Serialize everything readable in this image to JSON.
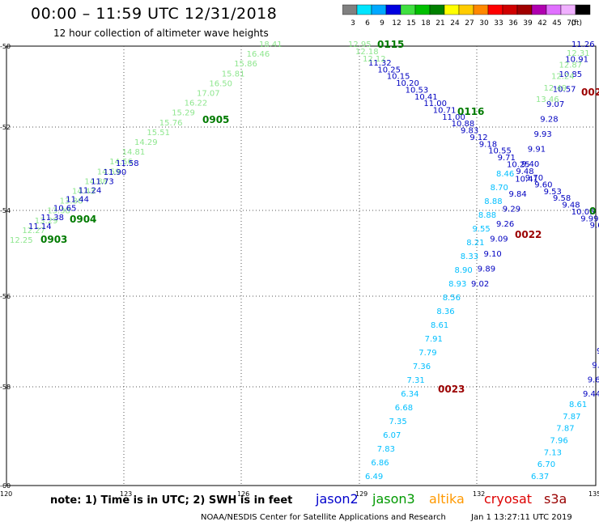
{
  "header": {
    "title": "00:00 – 11:59 UTC 12/31/2018",
    "subtitle": "12 hour collection of altimeter wave heights"
  },
  "scale": {
    "unit": "(ft)",
    "steps": [
      {
        "label": "3",
        "color": "#808080"
      },
      {
        "label": "6",
        "color": "#00e5ff"
      },
      {
        "label": "9",
        "color": "#00a8ff"
      },
      {
        "label": "12",
        "color": "#0000e0"
      },
      {
        "label": "15",
        "color": "#40e040"
      },
      {
        "label": "18",
        "color": "#00c000"
      },
      {
        "label": "21",
        "color": "#008000"
      },
      {
        "label": "24",
        "color": "#ffff00"
      },
      {
        "label": "27",
        "color": "#ffcc00"
      },
      {
        "label": "30",
        "color": "#ff8800"
      },
      {
        "label": "33",
        "color": "#ff0000"
      },
      {
        "label": "36",
        "color": "#d00000"
      },
      {
        "label": "39",
        "color": "#a00000"
      },
      {
        "label": "42",
        "color": "#b000b0"
      },
      {
        "label": "45",
        "color": "#e070ff"
      },
      {
        "label": "70",
        "color": "#f0b0ff"
      },
      {
        "label": "",
        "color": "#000000"
      }
    ]
  },
  "map": {
    "lat_labels": [
      "-50",
      "-52",
      "-54",
      "-56",
      "-58",
      "-60"
    ],
    "lon_labels": [
      "120",
      "123",
      "126",
      "129",
      "132",
      "135"
    ]
  },
  "tracks": [
    {
      "group": "t1",
      "color": "#8ee68e",
      "values": [
        "12.25",
        "12.27",
        "13.29",
        "13.38",
        "13.86",
        "14.43",
        "14.88",
        "14.59",
        "14.56",
        "14.81",
        "14.29",
        "15.51",
        "15.76",
        "15.29",
        "16.22",
        "17.07",
        "16.50",
        "15.81",
        "15.86",
        "16.46",
        "18.41"
      ]
    },
    {
      "group": "t1b",
      "color": "#0000c0",
      "values": [
        "11.14",
        "11.38",
        "10.65",
        "11.44",
        "11.24",
        "11.73",
        "11.90",
        "11.58"
      ]
    },
    {
      "group": "t2",
      "color": "#0000c0",
      "values": [
        "11.32",
        "10.25",
        "10.15",
        "10.20",
        "10.53",
        "10.41",
        "11.00",
        "10.71",
        "11.00",
        "10.88",
        "9.83",
        "9.12",
        "9.18",
        "10.55",
        "9.71",
        "10.25",
        "9.48",
        "9.70",
        "9.60",
        "9.53",
        "9.58",
        "9.48",
        "10.05",
        "9.99",
        "9.65",
        "9.9"
      ]
    },
    {
      "group": "t2g",
      "color": "#8ee68e",
      "values": [
        "12.95",
        "12.18",
        "12.12"
      ]
    },
    {
      "group": "t3",
      "color": "#0000c0",
      "values": [
        "11.26",
        "10.91",
        "10.85",
        "10.57",
        "9.07",
        "9.28",
        "9.93",
        "9.91",
        "9.40",
        "10.41",
        "9.84",
        "9.29",
        "9.26",
        "9.09",
        "9.10",
        "9.89",
        "9.02"
      ]
    },
    {
      "group": "t3g",
      "color": "#8ee68e",
      "values": [
        "12.31",
        "12.87",
        "12.24",
        "12.49",
        "13.46"
      ]
    },
    {
      "group": "t3c",
      "color": "#00bfff",
      "values": [
        "8.46",
        "8.70",
        "8.88",
        "8.88",
        "9.55",
        "8.21",
        "8.33",
        "8.90",
        "8.93",
        "8.56",
        "8.36",
        "8.61",
        "7.91",
        "7.79",
        "7.36",
        "7.31",
        "6.34",
        "6.68",
        "7.35",
        "6.07",
        "7.83",
        "6.86",
        "6.49"
      ]
    },
    {
      "group": "t4c",
      "color": "#00bfff",
      "values": [
        "8.61",
        "7.87",
        "7.87",
        "7.96",
        "7.13",
        "6.70",
        "6.37"
      ]
    },
    {
      "group": "t4b",
      "color": "#0000c0",
      "values": [
        "9",
        "9.5",
        "9.60",
        "9.44"
      ]
    }
  ],
  "pass_labels": [
    {
      "text": "0903",
      "color": "#007a00"
    },
    {
      "text": "0904",
      "color": "#007a00"
    },
    {
      "text": "0905",
      "color": "#007a00"
    },
    {
      "text": "0115",
      "color": "#007a00"
    },
    {
      "text": "0116",
      "color": "#007a00"
    },
    {
      "text": "0022",
      "color": "#9b0000"
    },
    {
      "text": "0023",
      "color": "#9b0000"
    },
    {
      "text": "002",
      "color": "#9b0000"
    },
    {
      "text": "0",
      "color": "#007a00"
    }
  ],
  "footer": {
    "note": "note:  1) Time is in UTC;  2) SWH is in feet",
    "satellites": [
      {
        "name": "jason2",
        "color": "#0000cc"
      },
      {
        "name": "jason3",
        "color": "#009900"
      },
      {
        "name": "altika",
        "color": "#ff9900"
      },
      {
        "name": "cryosat",
        "color": "#dd0000"
      },
      {
        "name": "s3a",
        "color": "#990000"
      }
    ],
    "credit": "NOAA/NESDIS Center for Satellite Applications and Research",
    "timestamp": "Jan  1 13:27:11 UTC 2019"
  }
}
